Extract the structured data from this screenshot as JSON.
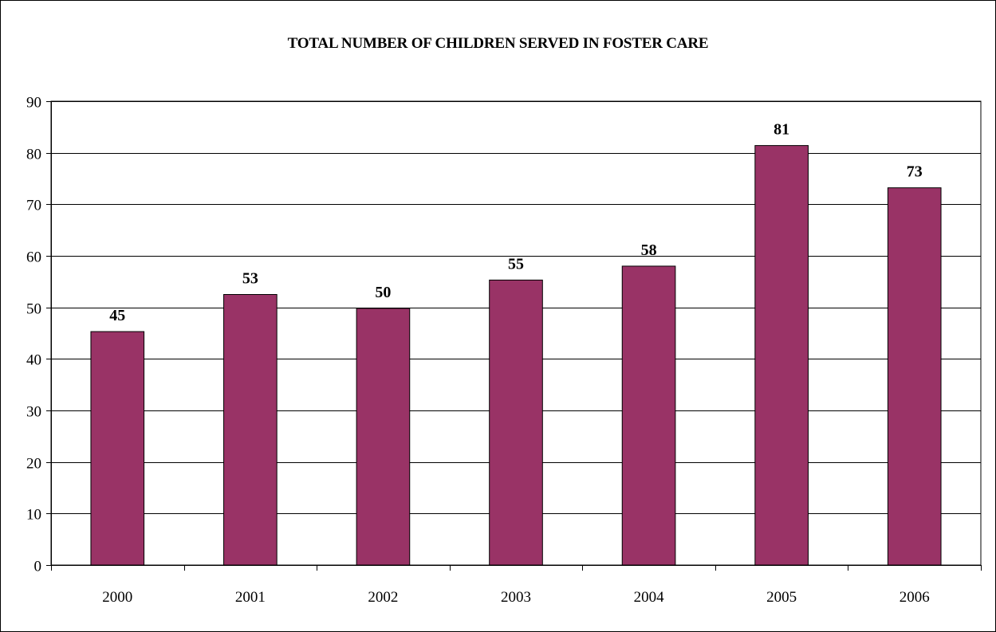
{
  "chart_data": {
    "type": "bar",
    "title": "TOTAL NUMBER OF CHILDREN SERVED IN FOSTER CARE",
    "xlabel": "",
    "ylabel": "",
    "categories": [
      "2000",
      "2001",
      "2002",
      "2003",
      "2004",
      "2005",
      "2006"
    ],
    "values": [
      45.3,
      52.5,
      49.8,
      55.3,
      58.0,
      81.4,
      73.2
    ],
    "data_labels": [
      "45",
      "53",
      "50",
      "55",
      "58",
      "81",
      "73"
    ],
    "ylim": [
      0,
      90
    ],
    "yticks": [
      0,
      10,
      20,
      30,
      40,
      50,
      60,
      70,
      80,
      90
    ],
    "grid": true,
    "legend": "none",
    "bar_color": "#993366",
    "bar_edge_color": "#000000"
  }
}
